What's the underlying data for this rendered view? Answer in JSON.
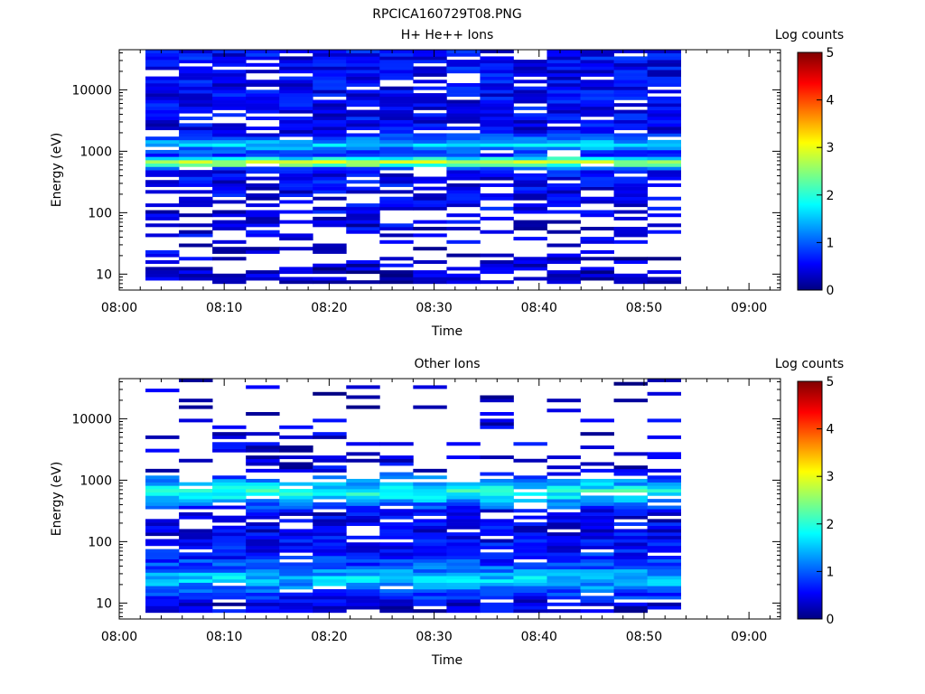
{
  "figure": {
    "title": "RPCICA160729T08.PNG"
  },
  "colors": {
    "colormap": [
      "#000080",
      "#0000ff",
      "#00ffff",
      "#ffff00",
      "#ff0000",
      "#800000"
    ],
    "background": "#ffffff"
  },
  "chart_data": [
    {
      "type": "heatmap",
      "title": "H+ He++ Ions",
      "xlabel": "Time",
      "ylabel": "Energy (eV)",
      "colorbar_label": "Log counts",
      "colorbar_range": [
        0,
        5
      ],
      "colorbar_ticks": [
        "0",
        "1",
        "2",
        "3",
        "4",
        "5"
      ],
      "x_ticks": [
        "08:00",
        "08:10",
        "08:20",
        "08:30",
        "08:40",
        "08:50",
        "09:00"
      ],
      "x_range_minutes": [
        0,
        63
      ],
      "y_scale": "log",
      "y_range": [
        5.5,
        45000
      ],
      "y_ticks": [
        10,
        100,
        1000,
        10000
      ],
      "y_tick_labels": [
        "10",
        "100",
        "1000",
        "10000"
      ],
      "data_time_range_minutes": [
        2.5,
        53.5
      ],
      "column_count": 16,
      "energy_bin_count": 70,
      "profile": [
        {
          "e": 10,
          "v": 0.25,
          "fill": 0.6
        },
        {
          "e": 20,
          "v": 0.35,
          "fill": 0.35
        },
        {
          "e": 100,
          "v": 0.45,
          "fill": 0.55
        },
        {
          "e": 500,
          "v": 0.55,
          "fill": 0.85
        },
        {
          "e": 650,
          "v": 3.0,
          "fill": 1.0
        },
        {
          "e": 900,
          "v": 0.6,
          "fill": 0.9
        },
        {
          "e": 1300,
          "v": 1.6,
          "fill": 1.0
        },
        {
          "e": 2000,
          "v": 0.5,
          "fill": 0.9
        },
        {
          "e": 45000,
          "v": 0.55,
          "fill": 0.85
        }
      ]
    },
    {
      "type": "heatmap",
      "title": "Other Ions",
      "xlabel": "Time",
      "ylabel": "Energy (eV)",
      "colorbar_label": "Log counts",
      "colorbar_range": [
        0,
        5
      ],
      "colorbar_ticks": [
        "0",
        "1",
        "2",
        "3",
        "4",
        "5"
      ],
      "x_ticks": [
        "08:00",
        "08:10",
        "08:20",
        "08:30",
        "08:40",
        "08:50",
        "09:00"
      ],
      "x_range_minutes": [
        0,
        63
      ],
      "y_scale": "log",
      "y_range": [
        5.5,
        45000
      ],
      "y_ticks": [
        10,
        100,
        1000,
        10000
      ],
      "y_tick_labels": [
        "10",
        "100",
        "1000",
        "10000"
      ],
      "data_time_range_minutes": [
        2.5,
        53.5
      ],
      "column_count": 16,
      "energy_bin_count": 70,
      "profile": [
        {
          "e": 10,
          "v": 0.4,
          "fill": 0.85
        },
        {
          "e": 25,
          "v": 1.6,
          "fill": 1.0
        },
        {
          "e": 40,
          "v": 0.9,
          "fill": 1.0
        },
        {
          "e": 100,
          "v": 0.5,
          "fill": 0.9
        },
        {
          "e": 300,
          "v": 0.45,
          "fill": 0.6
        },
        {
          "e": 650,
          "v": 2.0,
          "fill": 1.0
        },
        {
          "e": 1500,
          "v": 0.4,
          "fill": 0.3
        },
        {
          "e": 45000,
          "v": 0.35,
          "fill": 0.12
        }
      ]
    }
  ]
}
